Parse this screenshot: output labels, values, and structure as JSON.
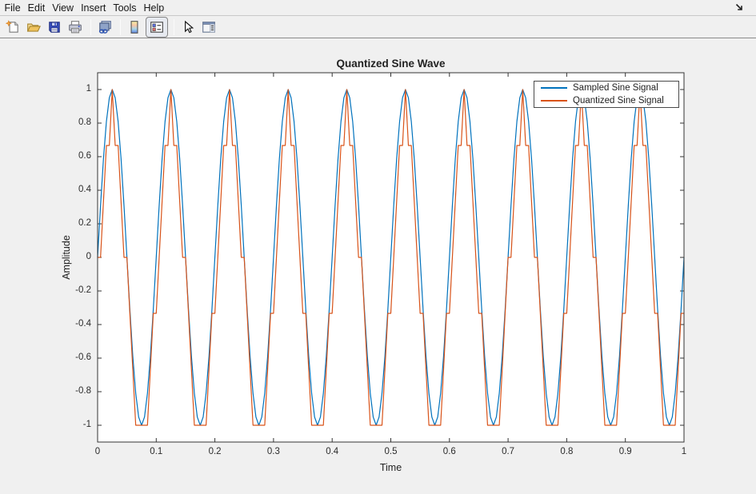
{
  "menu": {
    "items": [
      "File",
      "Edit",
      "View",
      "Insert",
      "Tools",
      "Help"
    ]
  },
  "toolbar": {
    "buttons": [
      {
        "icon": "new-figure-icon",
        "pressed": false
      },
      {
        "icon": "open-file-icon",
        "pressed": false
      },
      {
        "icon": "save-figure-icon",
        "pressed": false
      },
      {
        "icon": "print-figure-icon",
        "pressed": false
      },
      {
        "icon": "link-plot-icon",
        "pressed": false
      },
      {
        "icon": "insert-colorbar-icon",
        "pressed": false
      },
      {
        "icon": "insert-legend-icon",
        "pressed": true
      },
      {
        "icon": "edit-plot-icon",
        "pressed": false
      },
      {
        "icon": "plot-tools-icon",
        "pressed": false
      }
    ],
    "dock_icon": "dock-figure-icon"
  },
  "chart_data": {
    "type": "line",
    "title": "Quantized Sine Wave",
    "xlabel": "Time",
    "ylabel": "Amplitude",
    "xlim": [
      0,
      1
    ],
    "ylim": [
      -1.1,
      1.1
    ],
    "grid": false,
    "box": true,
    "x_ticks": {
      "values": [
        0,
        0.1,
        0.2,
        0.3,
        0.4,
        0.5,
        0.6,
        0.7,
        0.8,
        0.9,
        1
      ],
      "labels": [
        "0",
        "0.1",
        "0.2",
        "0.3",
        "0.4",
        "0.5",
        "0.6",
        "0.7",
        "0.8",
        "0.9",
        "1"
      ]
    },
    "y_ticks": {
      "values": [
        -1,
        -0.8,
        -0.6,
        -0.4,
        -0.2,
        0,
        0.2,
        0.4,
        0.6,
        0.8,
        1
      ],
      "labels": [
        "-1",
        "-0.8",
        "-0.6",
        "-0.4",
        "-0.2",
        "0",
        "0.2",
        "0.4",
        "0.6",
        "0.8",
        "1"
      ]
    },
    "signal": {
      "frequency": 10,
      "amplitude": 1,
      "duration": 1,
      "sample_interval": 0.005,
      "quantization": {
        "method": "floor",
        "levels_per_unit": 3,
        "step": "1/3",
        "levels": [
          -1,
          -0.667,
          -0.333,
          0,
          0.333,
          0.667,
          1
        ]
      }
    },
    "series": [
      {
        "name": "Sampled Sine Signal",
        "color": "#0072BD",
        "formula": "sin(2*pi*10*t)"
      },
      {
        "name": "Quantized Sine Signal",
        "color": "#D95319",
        "formula": "floor(3*sin(2*pi*10*t))/3"
      }
    ],
    "legend": {
      "location": "northeast",
      "entries": [
        {
          "label": "Sampled Sine Signal",
          "color": "#0072BD"
        },
        {
          "label": "Quantized Sine Signal",
          "color": "#D95319"
        }
      ]
    },
    "colors": {
      "figure_background": "#f0f0f0",
      "plot_background": "#ffffff",
      "axes": "#333333",
      "text": "#262626"
    }
  }
}
